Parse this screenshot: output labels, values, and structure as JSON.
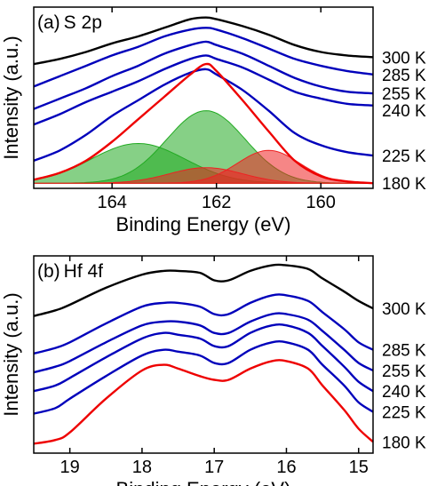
{
  "chart_data": [
    {
      "type": "line",
      "panel_label": "(a)",
      "panel_title": "S 2p",
      "xlabel": "Binding Energy (eV)",
      "ylabel": "Intensity (a.u.)",
      "x_reversed": true,
      "xlim": [
        165.5,
        159
      ],
      "x_ticks": [
        164,
        162,
        160
      ],
      "y_scale": "arbitrary offset units",
      "grid": false,
      "x": [
        165.5,
        165,
        164.5,
        164,
        163.5,
        163,
        162.5,
        162.2,
        162,
        161.5,
        161,
        160.5,
        160,
        159.5,
        159
      ],
      "series": [
        {
          "name": "300 K",
          "color": "#000000",
          "values": [
            6.9,
            7.2,
            7.6,
            8.1,
            8.5,
            9.0,
            9.5,
            9.6,
            9.5,
            9.1,
            8.6,
            8.0,
            7.6,
            7.4,
            7.3
          ]
        },
        {
          "name": "285 K",
          "color": "#0000bb",
          "values": [
            5.6,
            6.2,
            6.8,
            7.4,
            7.9,
            8.5,
            8.9,
            9.0,
            8.9,
            8.4,
            7.8,
            7.2,
            6.8,
            6.5,
            6.3
          ]
        },
        {
          "name": "255 K",
          "color": "#0000bb",
          "values": [
            4.3,
            4.9,
            5.5,
            6.2,
            6.8,
            7.5,
            8.0,
            8.2,
            8.0,
            7.5,
            6.8,
            6.1,
            5.6,
            5.3,
            5.2
          ]
        },
        {
          "name": "240 K",
          "color": "#0000bb",
          "values": [
            3.4,
            4.0,
            4.7,
            5.3,
            5.9,
            6.6,
            7.2,
            7.4,
            7.2,
            6.7,
            6.0,
            5.3,
            4.9,
            4.6,
            4.5
          ]
        },
        {
          "name": "225 K",
          "color": "#0000bb",
          "values": [
            1.3,
            1.9,
            2.8,
            3.9,
            4.8,
            5.7,
            6.4,
            6.6,
            6.3,
            5.4,
            4.2,
            2.9,
            2.2,
            1.8,
            1.6
          ]
        },
        {
          "name": "180 K",
          "color": "#ee0000",
          "values": [
            0.2,
            0.6,
            1.3,
            2.4,
            3.7,
            5.0,
            6.3,
            6.9,
            6.5,
            4.8,
            3.0,
            1.3,
            0.4,
            0.1,
            0.0
          ]
        }
      ],
      "fit_components": [
        {
          "center": 163.5,
          "height": 2.3,
          "width": 0.9,
          "color": "#22aa22"
        },
        {
          "center": 162.2,
          "height": 4.2,
          "width": 0.75,
          "color": "#22aa22"
        },
        {
          "center": 162.2,
          "height": 0.9,
          "width": 0.7,
          "color": "#ee2222"
        },
        {
          "center": 161.0,
          "height": 1.9,
          "width": 0.6,
          "color": "#ee2222"
        }
      ]
    },
    {
      "type": "line",
      "panel_label": "(b)",
      "panel_title": "Hf 4f",
      "xlabel": "Binding Energy (eV)",
      "ylabel": "Intensity (a.u.)",
      "x_reversed": true,
      "xlim": [
        19.5,
        14.8
      ],
      "x_ticks": [
        19,
        18,
        17,
        16,
        15
      ],
      "y_scale": "arbitrary offset units",
      "grid": false,
      "x": [
        19.5,
        19.2,
        19.0,
        18.5,
        18.0,
        17.7,
        17.5,
        17.2,
        17.0,
        16.8,
        16.5,
        16.2,
        16.0,
        15.7,
        15.5,
        15.2,
        15.0,
        14.8
      ],
      "series": [
        {
          "name": "300 K",
          "color": "#000000",
          "values": [
            7.0,
            7.3,
            7.6,
            8.5,
            9.2,
            9.4,
            9.4,
            9.3,
            8.9,
            8.9,
            9.4,
            9.7,
            9.7,
            9.5,
            9.0,
            8.3,
            7.8,
            7.4
          ]
        },
        {
          "name": "285 K",
          "color": "#0000bb",
          "values": [
            5.0,
            5.3,
            5.6,
            6.6,
            7.5,
            7.7,
            7.7,
            7.5,
            7.1,
            7.1,
            7.7,
            8.1,
            8.1,
            7.8,
            7.2,
            6.3,
            5.6,
            5.2
          ]
        },
        {
          "name": "255 K",
          "color": "#0000bb",
          "values": [
            4.0,
            4.3,
            4.6,
            5.6,
            6.5,
            6.7,
            6.7,
            6.5,
            6.1,
            6.1,
            6.7,
            7.1,
            7.1,
            6.8,
            6.2,
            5.2,
            4.5,
            4.1
          ]
        },
        {
          "name": "240 K",
          "color": "#0000bb",
          "values": [
            3.0,
            3.3,
            3.7,
            4.8,
            5.8,
            6.1,
            6.0,
            5.8,
            5.4,
            5.4,
            6.1,
            6.5,
            6.5,
            6.1,
            5.4,
            4.3,
            3.5,
            3.0
          ]
        },
        {
          "name": "225 K",
          "color": "#0000bb",
          "values": [
            1.8,
            2.1,
            2.6,
            3.8,
            4.9,
            5.2,
            5.1,
            4.9,
            4.5,
            4.5,
            5.2,
            5.6,
            5.6,
            5.2,
            4.4,
            3.3,
            2.4,
            1.9
          ]
        },
        {
          "name": "180 K",
          "color": "#ee0000",
          "values": [
            0.2,
            0.4,
            0.8,
            2.6,
            4.1,
            4.4,
            4.2,
            3.8,
            3.6,
            3.6,
            4.2,
            4.6,
            4.6,
            4.2,
            3.3,
            2.0,
            1.0,
            0.3
          ]
        }
      ]
    }
  ]
}
